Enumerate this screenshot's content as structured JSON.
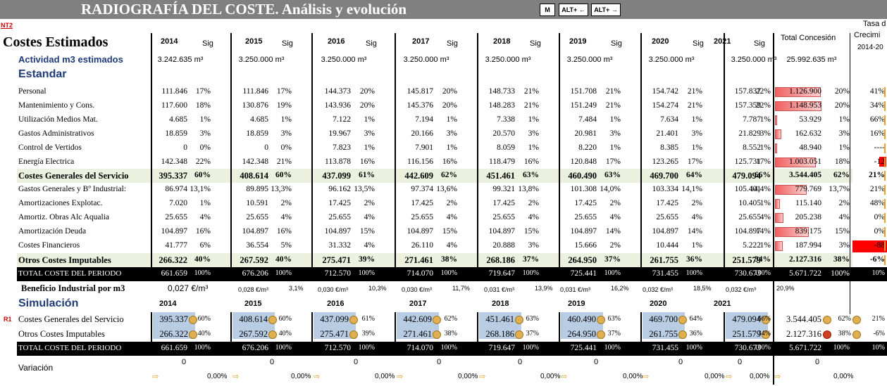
{
  "window": {
    "title": "RADIOGRAFÍA DEL COSTE. Análisis y evolución",
    "buttons": [
      "M",
      "ALT+ ←",
      "ALT+ →"
    ]
  },
  "markers": {
    "nt2": "NT2",
    "r1": "R1"
  },
  "header": {
    "section_title": "Costes Estimados",
    "years": [
      "2014",
      "2015",
      "2016",
      "2017",
      "2018",
      "2019",
      "2020",
      "2021"
    ],
    "sig": "Sig",
    "total": "Total Concesión",
    "tasa": [
      "Tasa d",
      "Crecimi",
      "2014-20"
    ]
  },
  "activity": {
    "label": "Actividad m3 estimados",
    "values": [
      "3.242.635 m³",
      "3.250.000 m³",
      "3.250.000 m³",
      "3.250.000 m³",
      "3.250.000 m³",
      "3.250.000 m³",
      "3.250.000 m³",
      "3.250.000 m³"
    ],
    "total": "25.992.635 m³"
  },
  "estandar_label": "Estandar",
  "rows": [
    {
      "label": "Personal",
      "v": [
        "111.846",
        "111.846",
        "144.373",
        "145.817",
        "148.733",
        "151.708",
        "154.742",
        "157.837"
      ],
      "s": [
        "17%",
        "17%",
        "20%",
        "20%",
        "21%",
        "21%",
        "21%",
        "22%"
      ],
      "total": "1.126.900",
      "tp": "20%",
      "tasa": "41%"
    },
    {
      "label": "Mantenimiento y Cons.",
      "v": [
        "117.600",
        "130.876",
        "143.936",
        "145.376",
        "148.283",
        "151.249",
        "154.274",
        "157.359"
      ],
      "s": [
        "18%",
        "19%",
        "20%",
        "20%",
        "21%",
        "21%",
        "21%",
        "22%"
      ],
      "total": "1.148.953",
      "tp": "20%",
      "tasa": "34%"
    },
    {
      "label": "Utilización Medios Mat.",
      "v": [
        "4.685",
        "4.685",
        "7.122",
        "7.194",
        "7.338",
        "7.484",
        "7.634",
        "7.787"
      ],
      "s": [
        "1%",
        "1%",
        "1%",
        "1%",
        "1%",
        "1%",
        "1%",
        "1%"
      ],
      "total": "53.929",
      "tp": "1%",
      "tasa": "66%"
    },
    {
      "label": "Gastos Administrativos",
      "v": [
        "18.859",
        "18.859",
        "19.967",
        "20.166",
        "20.570",
        "20.981",
        "21.401",
        "21.829"
      ],
      "s": [
        "3%",
        "3%",
        "3%",
        "3%",
        "3%",
        "3%",
        "3%",
        "3%"
      ],
      "total": "162.632",
      "tp": "3%",
      "tasa": "16%"
    },
    {
      "label": "Control de Vertidos",
      "v": [
        "0",
        "0",
        "7.823",
        "7.901",
        "8.059",
        "8.220",
        "8.385",
        "8.552"
      ],
      "s": [
        "0%",
        "0%",
        "1%",
        "1%",
        "1%",
        "1%",
        "1%",
        "1%"
      ],
      "total": "48.940",
      "tp": "1%",
      "tasa": "----"
    },
    {
      "label": "Energía Electrica",
      "v": [
        "142.348",
        "142.348",
        "113.878",
        "116.156",
        "118.479",
        "120.848",
        "123.265",
        "125.731"
      ],
      "s": [
        "22%",
        "21%",
        "16%",
        "16%",
        "16%",
        "17%",
        "17%",
        "17%"
      ],
      "total": "1.003.051",
      "tp": "18%",
      "tasa": "-12"
    },
    {
      "label": "Costes Generales del Servicio",
      "bold": true,
      "v": [
        "395.337",
        "408.614",
        "437.099",
        "442.609",
        "451.461",
        "460.490",
        "469.700",
        "479.094"
      ],
      "s": [
        "60%",
        "60%",
        "61%",
        "62%",
        "63%",
        "63%",
        "64%",
        "66%"
      ],
      "total": "3.544.405",
      "tp": "62%",
      "tasa": "21%"
    },
    {
      "label": "Gastos Generales y Bº Industrial:",
      "v": [
        "86.974",
        "89.895",
        "96.162",
        "97.374",
        "99.321",
        "101.308",
        "103.334",
        "105.401"
      ],
      "s": [
        "13,1%",
        "13,3%",
        "13,5%",
        "13,6%",
        "13,8%",
        "14,0%",
        "14,1%",
        "14,4%"
      ],
      "total": "779.769",
      "tp": "13,7%",
      "tasa": "21%"
    },
    {
      "label": "Amortizaciones Explotac.",
      "v": [
        "7.020",
        "10.591",
        "17.425",
        "17.425",
        "17.425",
        "17.425",
        "17.425",
        "10.405"
      ],
      "s": [
        "1%",
        "2%",
        "2%",
        "2%",
        "2%",
        "2%",
        "2%",
        "1%"
      ],
      "total": "115.140",
      "tp": "2%",
      "tasa": "48%"
    },
    {
      "label": "Amortiz. Obras Alc Aqualia",
      "v": [
        "25.655",
        "25.655",
        "25.655",
        "25.655",
        "25.655",
        "25.655",
        "25.655",
        "25.655"
      ],
      "s": [
        "4%",
        "4%",
        "4%",
        "4%",
        "4%",
        "4%",
        "4%",
        "4%"
      ],
      "total": "205.238",
      "tp": "4%",
      "tasa": "0%"
    },
    {
      "label": "Amortización Deuda",
      "v": [
        "104.897",
        "104.897",
        "104.897",
        "104.897",
        "104.897",
        "104.897",
        "104.897",
        "104.897"
      ],
      "s": [
        "16%",
        "16%",
        "15%",
        "15%",
        "15%",
        "14%",
        "14%",
        "14%"
      ],
      "total": "839.175",
      "tp": "15%",
      "tasa": "0%"
    },
    {
      "label": "Costes Financieros",
      "v": [
        "41.777",
        "36.554",
        "31.332",
        "26.110",
        "20.888",
        "15.666",
        "10.444",
        "5.222"
      ],
      "s": [
        "6%",
        "5%",
        "4%",
        "4%",
        "3%",
        "2%",
        "1%",
        "1%"
      ],
      "total": "187.994",
      "tp": "3%",
      "tasa": "-88"
    },
    {
      "label": "Otros Costes Imputables",
      "bold": true,
      "v": [
        "266.322",
        "267.592",
        "275.471",
        "271.461",
        "268.186",
        "264.950",
        "261.755",
        "251.579"
      ],
      "s": [
        "40%",
        "40%",
        "39%",
        "38%",
        "37%",
        "37%",
        "36%",
        "34%"
      ],
      "total": "2.127.316",
      "tp": "38%",
      "tasa": "-6%"
    }
  ],
  "total_row": {
    "label": "TOTAL COSTE DEL PERIODO",
    "v": [
      "661.659",
      "676.206",
      "712.570",
      "714.070",
      "719.647",
      "725.441",
      "731.455",
      "730.673"
    ],
    "s": [
      "100%",
      "100%",
      "100%",
      "100%",
      "100%",
      "100%",
      "100%",
      "100%"
    ],
    "total": "5.671.722",
    "tp": "100%",
    "tasa": "10%"
  },
  "beneficio": {
    "label": "Beneficio Industrial por m3",
    "first": "0,027 €/m³",
    "v": [
      "0,028 €/m³",
      "0,030 €/m³",
      "0,030 €/m³",
      "0,031 €/m³",
      "0,031 €/m³",
      "0,032 €/m³",
      "0,032 €/m³"
    ],
    "p": [
      "3,1%",
      "10,3%",
      "11,7%",
      "13,9%",
      "16,2%",
      "18,5%",
      "20,9%"
    ]
  },
  "simulacion": {
    "label": "Simulación",
    "years": [
      "2014",
      "2015",
      "2016",
      "2017",
      "2018",
      "2019",
      "2020",
      "2021"
    ],
    "rows": [
      {
        "label": "Costes Generales del Servicio",
        "v": [
          "395.337",
          "408.614",
          "437.099",
          "442.609",
          "451.461",
          "460.490",
          "469.700",
          "479.094"
        ],
        "s": [
          "60%",
          "60%",
          "61%",
          "62%",
          "63%",
          "63%",
          "64%",
          "66%"
        ],
        "total": "3.544.405",
        "tp": "62%",
        "tasa": "21%"
      },
      {
        "label": "Otros Costes Imputables",
        "v": [
          "266.322",
          "267.592",
          "275.471",
          "271.461",
          "268.186",
          "264.950",
          "261.755",
          "251.579"
        ],
        "s": [
          "40%",
          "40%",
          "39%",
          "38%",
          "37%",
          "37%",
          "36%",
          "34%"
        ],
        "total": "2.127.316",
        "tp": "38%",
        "tasa": "-6%"
      }
    ],
    "total": {
      "label": "TOTAL COSTE DEL PERIODO",
      "v": [
        "661.659",
        "676.206",
        "712.570",
        "714.070",
        "719.647",
        "725.441",
        "731.455",
        "730.673"
      ],
      "s": [
        "100%",
        "100%",
        "100%",
        "100%",
        "100%",
        "100%",
        "100%",
        "100%"
      ],
      "total": "5.671.722",
      "tp": "100%",
      "tasa": "10%"
    },
    "variacion": {
      "label": "Variación",
      "v": [
        "0",
        "0",
        "0",
        "0",
        "0",
        "0",
        "0",
        "0"
      ],
      "total": "0",
      "p": [
        "0,00%",
        "0,00%",
        "0,00%",
        "0,00%",
        "0,00%",
        "0,00%",
        "0,00%",
        "0,00%",
        "0,00%"
      ]
    }
  },
  "colors": {
    "title_bg": "#808080",
    "accent_blue": "#1f3b7a",
    "highlight_green": "#ebf1de",
    "sim_blue": "#b8cce4",
    "bar_red": "#f08080",
    "neg_red": "#ff0000"
  }
}
